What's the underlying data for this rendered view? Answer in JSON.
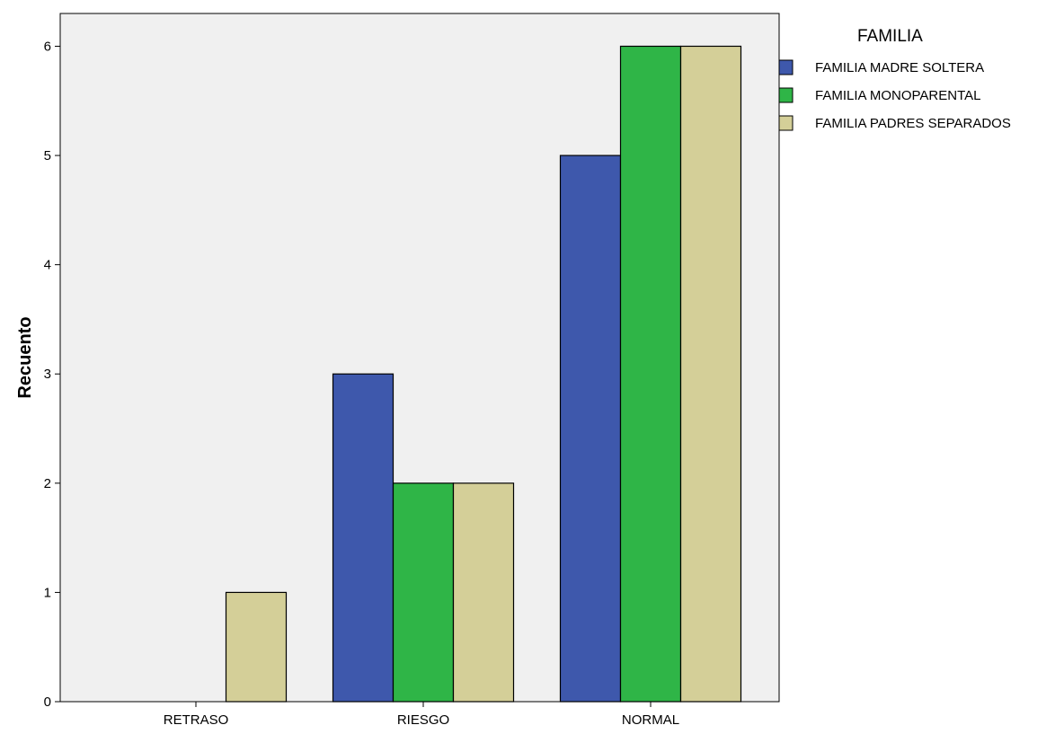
{
  "chart_data": {
    "type": "bar",
    "title": "",
    "xlabel": "",
    "ylabel": "Recuento",
    "categories": [
      "RETRASO",
      "RIESGO",
      "NORMAL"
    ],
    "series": [
      {
        "name": "FAMILIA MADRE SOLTERA",
        "values": [
          0,
          3,
          5
        ],
        "color": "#3e58ac"
      },
      {
        "name": "FAMILIA MONOPARENTAL",
        "values": [
          0,
          2,
          6
        ],
        "color": "#2fb547"
      },
      {
        "name": "FAMILIA PADRES SEPARADOS",
        "values": [
          1,
          2,
          6
        ],
        "color": "#d4cf98"
      }
    ],
    "ylim": [
      0,
      6.3
    ],
    "yticks": [
      0,
      1,
      2,
      3,
      4,
      5,
      6
    ],
    "grid": false,
    "plot_background": "#f0f0f0",
    "bar_outline": "#000000",
    "legend": {
      "title": "FAMILIA",
      "position": "right"
    }
  }
}
